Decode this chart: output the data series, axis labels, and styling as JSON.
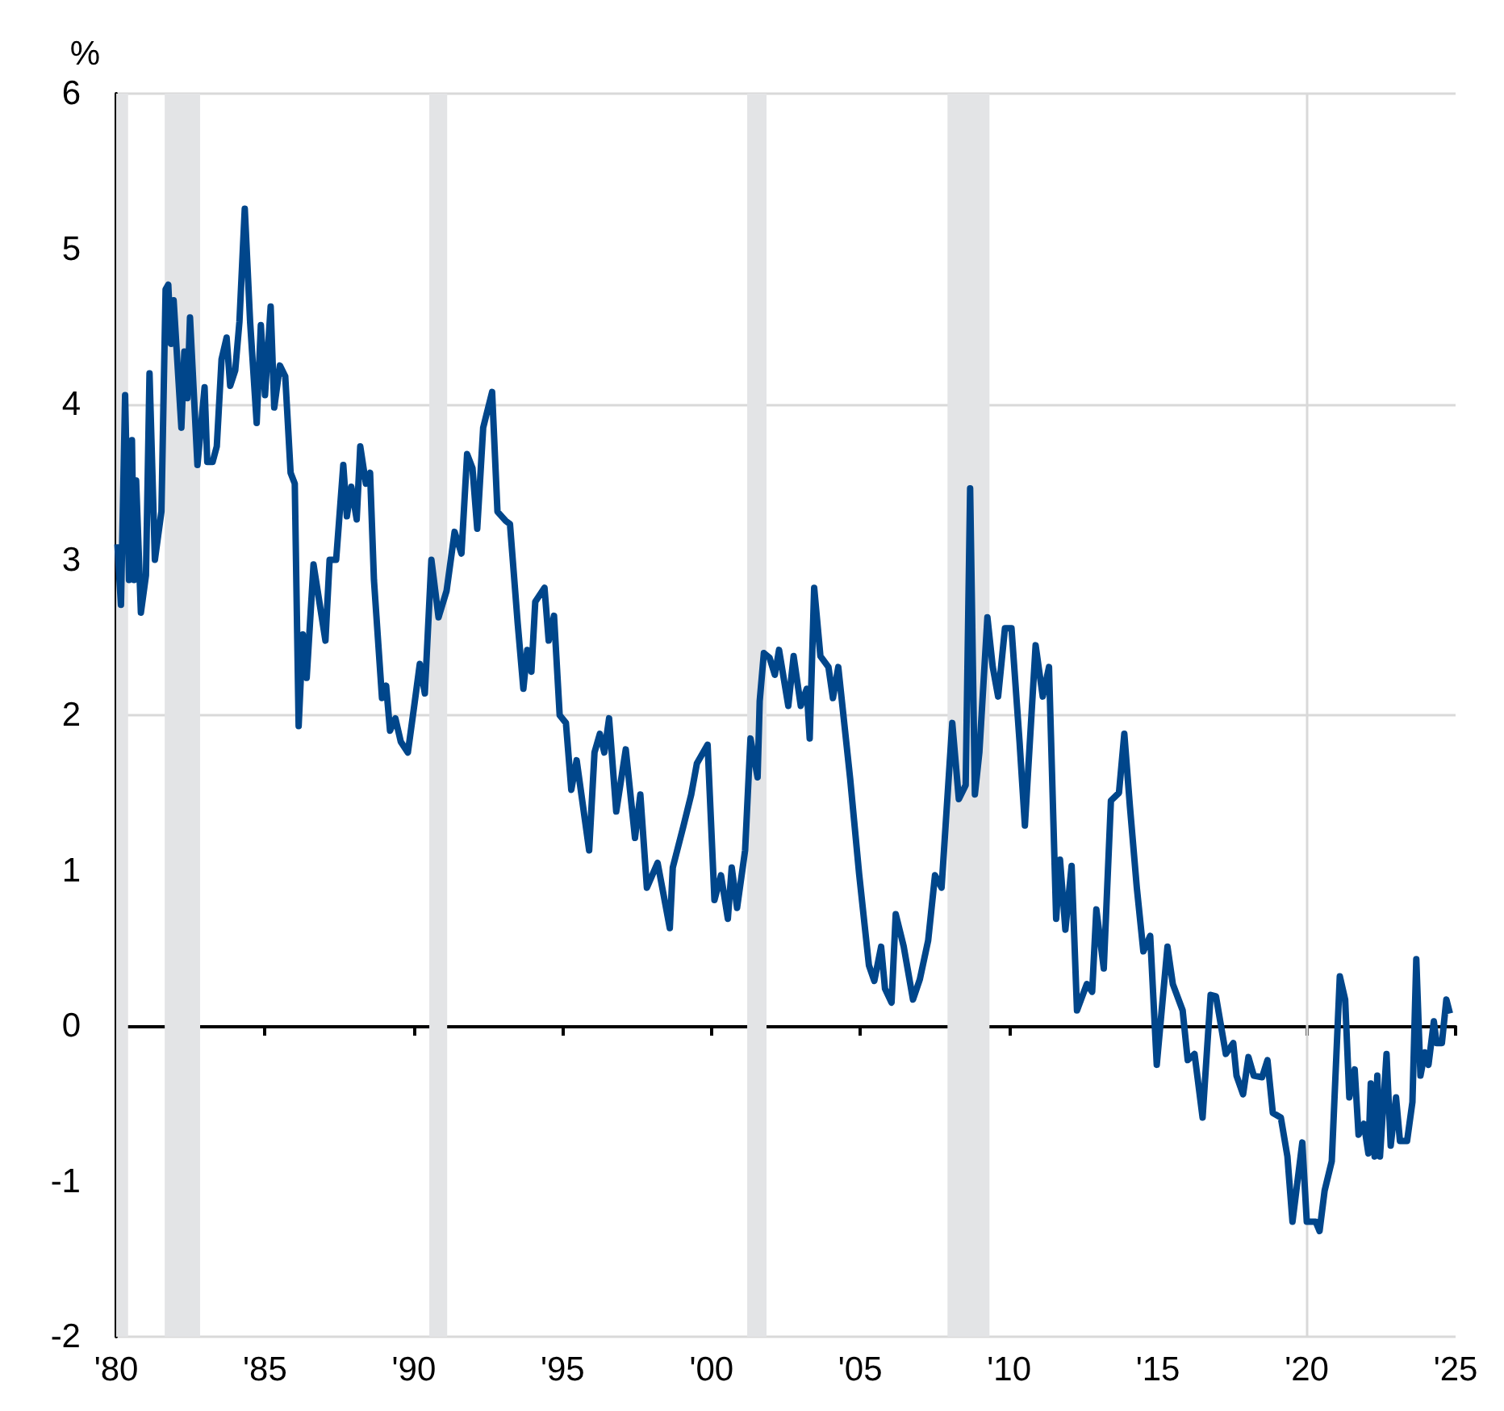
{
  "chart_data": {
    "type": "line",
    "ylabel": "%",
    "x": [
      1980.04,
      1980.16,
      1980.3,
      1980.43,
      1980.53,
      1980.6,
      1980.67,
      1980.83,
      1981.0,
      1981.12,
      1981.3,
      1981.52,
      1981.66,
      1981.75,
      1981.84,
      1981.93,
      1982.19,
      1982.29,
      1982.39,
      1982.48,
      1982.73,
      1982.97,
      1983.06,
      1983.24,
      1983.38,
      1983.54,
      1983.71,
      1983.83,
      1984.0,
      1984.14,
      1984.32,
      1984.5,
      1984.72,
      1984.86,
      1985.0,
      1985.19,
      1985.31,
      1985.5,
      1985.68,
      1985.86,
      1986.0,
      1986.13,
      1986.27,
      1986.4,
      1986.63,
      1987.03,
      1987.17,
      1987.39,
      1987.63,
      1987.75,
      1987.9,
      1988.08,
      1988.2,
      1988.39,
      1988.53,
      1988.66,
      1988.93,
      1989.07,
      1989.2,
      1989.38,
      1989.56,
      1989.8,
      1990.02,
      1990.2,
      1990.37,
      1990.59,
      1990.83,
      1991.1,
      1991.37,
      1991.6,
      1991.79,
      1991.97,
      1992.13,
      1992.33,
      1992.63,
      1992.81,
      1993.09,
      1993.23,
      1993.49,
      1993.68,
      1993.81,
      1993.95,
      1994.08,
      1994.39,
      1994.53,
      1994.71,
      1994.9,
      1995.11,
      1995.29,
      1995.47,
      1995.89,
      1996.07,
      1996.25,
      1996.4,
      1996.56,
      1996.8,
      1997.12,
      1997.43,
      1997.61,
      1997.83,
      1998.19,
      1998.6,
      1998.7,
      1999.05,
      1999.32,
      1999.51,
      1999.87,
      2000.1,
      2000.32,
      2000.55,
      2000.68,
      2000.86,
      2001.13,
      2001.31,
      2001.55,
      2001.62,
      2001.76,
      2001.95,
      2002.13,
      2002.27,
      2002.58,
      2002.76,
      2003.0,
      2003.2,
      2003.3,
      2003.45,
      2003.66,
      2003.93,
      2004.08,
      2004.26,
      2004.66,
      2004.96,
      2005.29,
      2005.47,
      2005.7,
      2005.83,
      2006.05,
      2006.19,
      2006.46,
      2006.77,
      2007.0,
      2007.28,
      2007.51,
      2007.73,
      2008.09,
      2008.31,
      2008.54,
      2008.69,
      2008.85,
      2009.0,
      2009.27,
      2009.45,
      2009.63,
      2009.86,
      2010.08,
      2010.35,
      2010.53,
      2010.89,
      2011.13,
      2011.34,
      2011.58,
      2011.71,
      2011.89,
      2012.1,
      2012.28,
      2012.61,
      2012.79,
      2012.93,
      2013.18,
      2013.42,
      2013.69,
      2013.87,
      2014.06,
      2014.29,
      2014.51,
      2014.74,
      2014.96,
      2015.32,
      2015.5,
      2015.83,
      2016.0,
      2016.23,
      2016.5,
      2016.77,
      2016.95,
      2017.28,
      2017.53,
      2017.64,
      2017.86,
      2018.04,
      2018.22,
      2018.5,
      2018.68,
      2018.86,
      2019.13,
      2019.35,
      2019.52,
      2019.85,
      2020.0,
      2020.3,
      2020.43,
      2020.6,
      2020.84,
      2021.11,
      2021.29,
      2021.43,
      2021.61,
      2021.74,
      2021.92,
      2022.07,
      2022.15,
      2022.28,
      2022.37,
      2022.46,
      2022.68,
      2022.82,
      2023.0,
      2023.13,
      2023.37,
      2023.55,
      2023.68,
      2023.82,
      2023.97,
      2024.09,
      2024.27,
      2024.36,
      2024.54,
      2024.69,
      2024.81
    ],
    "series": [
      {
        "color": "#00468b",
        "values": [
          3.1,
          2.71,
          4.06,
          2.87,
          3.77,
          2.87,
          3.51,
          2.66,
          2.9,
          4.2,
          3.0,
          3.31,
          4.74,
          4.77,
          4.39,
          4.67,
          3.85,
          4.34,
          4.04,
          4.56,
          3.61,
          4.11,
          3.63,
          3.63,
          3.73,
          4.29,
          4.43,
          4.12,
          4.22,
          4.53,
          5.26,
          4.53,
          3.88,
          4.51,
          4.06,
          4.63,
          3.98,
          4.25,
          4.18,
          3.56,
          3.49,
          1.93,
          2.52,
          2.24,
          2.97,
          2.48,
          3.0,
          3.0,
          3.61,
          3.28,
          3.47,
          3.26,
          3.73,
          3.49,
          3.56,
          2.87,
          2.11,
          2.19,
          1.9,
          1.98,
          1.83,
          1.76,
          2.07,
          2.33,
          2.14,
          3.0,
          2.63,
          2.8,
          3.18,
          3.04,
          3.68,
          3.59,
          3.2,
          3.85,
          4.08,
          3.31,
          3.25,
          3.23,
          2.59,
          2.17,
          2.42,
          2.28,
          2.73,
          2.82,
          2.48,
          2.64,
          2.0,
          1.95,
          1.52,
          1.71,
          1.13,
          1.76,
          1.88,
          1.76,
          1.98,
          1.38,
          1.78,
          1.21,
          1.49,
          0.89,
          1.05,
          0.63,
          1.02,
          1.28,
          1.49,
          1.69,
          1.81,
          0.81,
          0.97,
          0.69,
          1.02,
          0.76,
          1.13,
          1.85,
          1.6,
          2.09,
          2.4,
          2.37,
          2.26,
          2.42,
          2.06,
          2.38,
          2.06,
          2.17,
          1.85,
          2.82,
          2.38,
          2.31,
          2.11,
          2.31,
          1.59,
          0.98,
          0.39,
          0.29,
          0.51,
          0.24,
          0.15,
          0.72,
          0.51,
          0.17,
          0.3,
          0.55,
          0.97,
          0.89,
          1.95,
          1.46,
          1.55,
          3.46,
          1.49,
          1.76,
          2.63,
          2.31,
          2.12,
          2.56,
          2.56,
          1.83,
          1.29,
          2.45,
          2.12,
          2.31,
          0.69,
          1.07,
          0.62,
          1.03,
          0.1,
          0.27,
          0.22,
          0.75,
          0.37,
          1.45,
          1.5,
          1.88,
          1.41,
          0.89,
          0.48,
          0.58,
          -0.25,
          0.51,
          0.27,
          0.1,
          -0.22,
          -0.18,
          -0.59,
          0.2,
          0.19,
          -0.18,
          -0.11,
          -0.32,
          -0.44,
          -0.2,
          -0.32,
          -0.33,
          -0.22,
          -0.56,
          -0.59,
          -0.84,
          -1.26,
          -0.75,
          -1.26,
          -1.26,
          -1.32,
          -1.06,
          -0.87,
          0.32,
          0.17,
          -0.46,
          -0.28,
          -0.7,
          -0.63,
          -0.82,
          -0.37,
          -0.84,
          -0.32,
          -0.84,
          -0.18,
          -0.77,
          -0.46,
          -0.74,
          -0.74,
          -0.49,
          0.43,
          -0.32,
          -0.17,
          -0.25,
          0.03,
          -0.11,
          -0.11,
          0.17,
          0.08
        ]
      }
    ],
    "xlim": [
      1980,
      2025
    ],
    "xticks": [
      {
        "value": 1980,
        "label": "'80"
      },
      {
        "value": 1985,
        "label": "'85"
      },
      {
        "value": 1990,
        "label": "'90"
      },
      {
        "value": 1995,
        "label": "'95"
      },
      {
        "value": 2000,
        "label": "'00"
      },
      {
        "value": 2005,
        "label": "'05"
      },
      {
        "value": 2010,
        "label": "'10"
      },
      {
        "value": 2015,
        "label": "'15"
      },
      {
        "value": 2020,
        "label": "'20"
      },
      {
        "value": 2025,
        "label": "'25"
      }
    ],
    "ylim": [
      -2,
      6
    ],
    "yticks": [
      -2,
      -1,
      0,
      1,
      2,
      3,
      4,
      5,
      6
    ],
    "grid": "y",
    "bands": [
      {
        "axis": "x",
        "from": 1980.0,
        "to": 1980.4,
        "color": "#e3e4e6"
      },
      {
        "axis": "x",
        "from": 1981.63,
        "to": 1982.82,
        "color": "#e3e4e6"
      },
      {
        "axis": "x",
        "from": 1990.52,
        "to": 1991.12,
        "color": "#e3e4e6"
      },
      {
        "axis": "x",
        "from": 2001.2,
        "to": 2001.85,
        "color": "#e3e4e6"
      },
      {
        "axis": "x",
        "from": 2007.93,
        "to": 2009.34,
        "color": "#e3e4e6"
      }
    ],
    "ref_lines": [
      {
        "axis": "x",
        "value": 2020,
        "color": "#d9d9d9"
      }
    ]
  }
}
